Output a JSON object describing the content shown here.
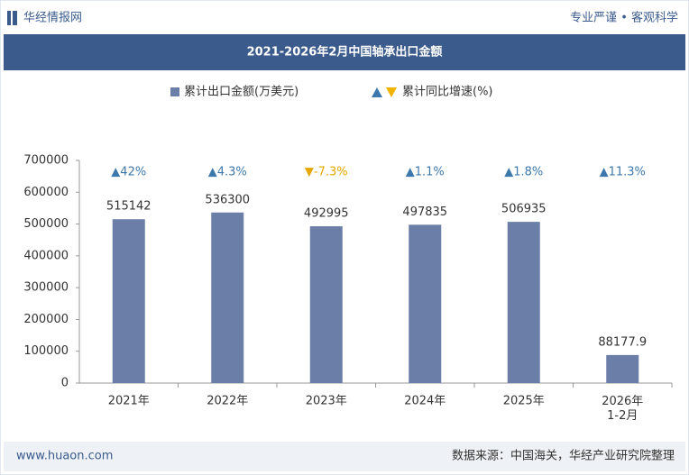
{
  "header": {
    "brand": "华经情报网",
    "slogan": "专业严谨 • 客观科学"
  },
  "chart_data": {
    "type": "bar",
    "title": "2021-2026年2月中国轴承出口金额",
    "categories": [
      "2021年",
      "2022年",
      "2023年",
      "2024年",
      "2025年",
      "2026年\n1-2月"
    ],
    "series": [
      {
        "name": "累计出口金额(万美元)",
        "color": "#6a7ea8",
        "values": [
          515142,
          536300,
          492995,
          497835,
          506935,
          88177.9
        ]
      },
      {
        "name": "累计同比增速(%)",
        "color": "#3d78ac",
        "values": [
          42,
          4.3,
          -7.3,
          1.1,
          1.8,
          11.3
        ],
        "value_labels": [
          "▲42%",
          "▲4.3%",
          "▼-7.3%",
          "▲1.1%",
          "▲1.8%",
          "▲11.3%"
        ]
      }
    ],
    "ylim": [
      0,
      700000
    ],
    "yticks": [
      0,
      100000,
      200000,
      300000,
      400000,
      500000,
      600000,
      700000
    ]
  },
  "footer": {
    "website": "www.huaon.com",
    "source": "数据来源：中国海关，华经产业研究院整理"
  }
}
